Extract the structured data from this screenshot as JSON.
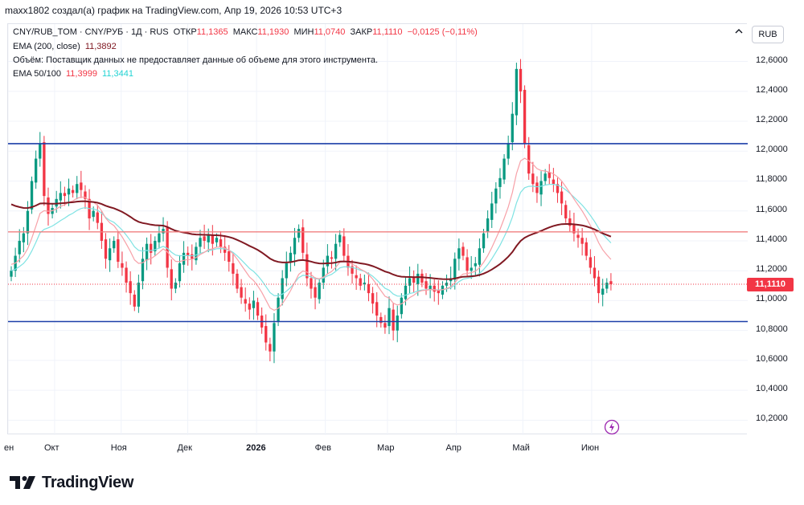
{
  "header": {
    "text": "maxx1802 создал(а) график на TradingView.com, Апр 19, 2026 10:53 UTC+3"
  },
  "legend": {
    "symbol": "CNY/RUB_TOM · CNY/РУБ · 1Д · RUS",
    "open_label": "ОТКР",
    "open_value": "11,1365",
    "high_label": "МАКС",
    "high_value": "11,1930",
    "low_label": "МИН",
    "low_value": "11,0740",
    "close_label": "ЗАКР",
    "close_value": "11,1110",
    "change": "−0,0125 (−0,11%)",
    "ema200_label": "EMA (200, close)",
    "ema200_value": "11,3892",
    "volume_note": "Объём: Поставщик данных не предоставляет данные об объеме для этого инструмента.",
    "ema_pair_label": "EMA 50/100",
    "ema50_value": "11,3999",
    "ema100_value": "11,3441"
  },
  "toolbar": {
    "currency": "RUB"
  },
  "price_tag": "11,1110",
  "brand": "TradingView",
  "icons": {
    "collapse": "chevron-up-icon",
    "lightning": "lightning-icon",
    "logo": "tradingview-logo-icon"
  },
  "colors": {
    "up": "#089981",
    "down": "#f23645",
    "ema200": "#801922",
    "ema50": "#f7a1a8",
    "ema100": "#7fe3e3",
    "hline_blue": "#1c3fa8",
    "hline_red": "#f08080"
  },
  "chart_data": {
    "type": "candlestick",
    "title": "CNY/RUB_TOM · CNY/РУБ · 1Д · RUS",
    "ylim": [
      10.1,
      12.85
    ],
    "y_ticks": [
      "12,6000",
      "12,4000",
      "12,2000",
      "12,0000",
      "11,8000",
      "11,6000",
      "11,4000",
      "11,2000",
      "11,0000",
      "10,8000",
      "10,6000",
      "10,4000",
      "10,2000"
    ],
    "y_tick_values": [
      12.6,
      12.4,
      12.2,
      12.0,
      11.8,
      11.6,
      11.4,
      11.2,
      11.0,
      10.8,
      10.6,
      10.4,
      10.2
    ],
    "x_labels": [
      "ен",
      "Окт",
      "Ноя",
      "Дек",
      "2026",
      "Фев",
      "Мар",
      "Апр",
      "Май",
      "Июн"
    ],
    "x_label_days": [
      0,
      21,
      51,
      81,
      112,
      143,
      171,
      202,
      232,
      263
    ],
    "n_days": 265,
    "horizontal_lines": [
      {
        "name": "resistance-line",
        "value": 12.05,
        "color": "#1c3fa8"
      },
      {
        "name": "support-line",
        "value": 10.86,
        "color": "#1c3fa8"
      },
      {
        "name": "pivot-line",
        "value": 11.46,
        "color": "#f08080"
      }
    ],
    "closes": [
      11.2,
      11.3,
      11.4,
      11.45,
      11.6,
      11.8,
      11.95,
      12.05,
      11.7,
      11.58,
      11.62,
      11.68,
      11.72,
      11.7,
      11.75,
      11.72,
      11.78,
      11.74,
      11.68,
      11.55,
      11.6,
      11.52,
      11.4,
      11.28,
      11.35,
      11.4,
      11.26,
      11.22,
      11.12,
      11.05,
      10.96,
      11.12,
      11.28,
      11.38,
      11.32,
      11.4,
      11.45,
      11.48,
      11.22,
      11.08,
      11.12,
      11.25,
      11.32,
      11.3,
      11.28,
      11.36,
      11.42,
      11.4,
      11.44,
      11.38,
      11.42,
      11.36,
      11.32,
      11.26,
      11.18,
      11.08,
      11.02,
      10.98,
      10.94,
      11.0,
      10.9,
      10.82,
      10.72,
      10.66,
      10.85,
      11.02,
      11.15,
      11.25,
      11.32,
      11.42,
      11.48,
      11.32,
      11.15,
      11.08,
      11.02,
      11.12,
      11.22,
      11.3,
      11.28,
      11.38,
      11.44,
      11.3,
      11.22,
      11.18,
      11.15,
      11.1,
      11.12,
      11.05,
      10.98,
      10.9,
      10.85,
      10.82,
      10.95,
      10.8,
      10.9,
      11.02,
      11.1,
      11.15,
      11.12,
      11.18,
      11.12,
      11.08,
      11.1,
      11.06,
      11.05,
      11.1,
      11.12,
      11.15,
      11.28,
      11.35,
      11.3,
      11.2,
      11.22,
      11.25,
      11.35,
      11.45,
      11.55,
      11.65,
      11.75,
      11.82,
      11.95,
      12.05,
      12.25,
      12.55,
      12.4,
      12.05,
      11.85,
      11.78,
      11.72,
      11.8,
      11.85,
      11.82,
      11.78,
      11.72,
      11.65,
      11.55,
      11.5,
      11.45,
      11.42,
      11.38,
      11.3,
      11.22,
      11.15,
      11.05,
      11.08,
      11.12,
      11.11
    ],
    "series": [
      {
        "name": "EMA (200, close)",
        "value": "11,3892"
      },
      {
        "name": "EMA 50",
        "value": "11,3999"
      },
      {
        "name": "EMA 100",
        "value": "11,3441"
      }
    ],
    "last_close": "11,1110"
  }
}
